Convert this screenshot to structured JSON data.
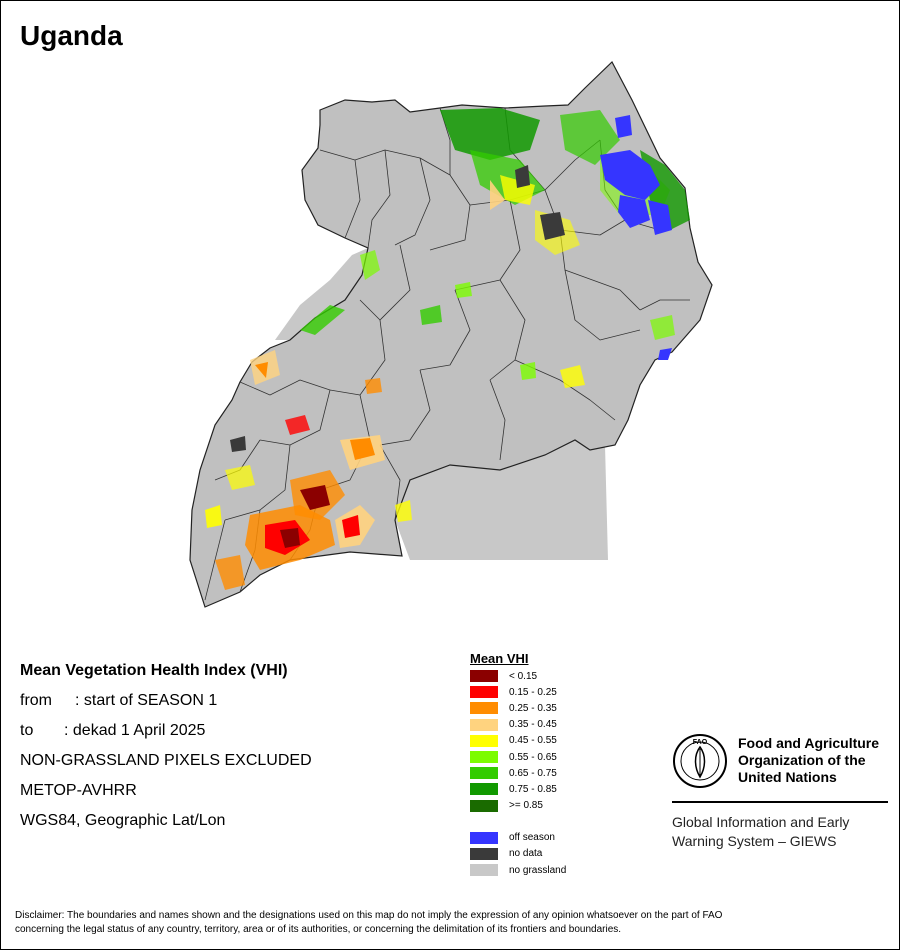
{
  "title": "Uganda",
  "info": {
    "heading": "Mean Vegetation Health Index (VHI)",
    "from_label": "from",
    "from_value": ": start of SEASON 1",
    "to_label": "to",
    "to_value": ": dekad 1 April 2025",
    "mask": "NON-GRASSLAND PIXELS EXCLUDED",
    "sensor": "METOP-AVHRR",
    "projection": "WGS84, Geographic Lat/Lon"
  },
  "legend": {
    "title": "Mean VHI",
    "classes": [
      {
        "label": "< 0.15",
        "color": "#8b0000"
      },
      {
        "label": "0.15 - 0.25",
        "color": "#ff0000"
      },
      {
        "label": "0.25 - 0.35",
        "color": "#ff8c00"
      },
      {
        "label": "0.35 - 0.45",
        "color": "#ffd37f"
      },
      {
        "label": "0.45 - 0.55",
        "color": "#ffff00"
      },
      {
        "label": "0.55 - 0.65",
        "color": "#7cfc00"
      },
      {
        "label": "0.65 - 0.75",
        "color": "#33cc00"
      },
      {
        "label": "0.75 - 0.85",
        "color": "#119900"
      },
      {
        "label": ">= 0.85",
        "color": "#1a6b00"
      }
    ],
    "other": [
      {
        "label": "off season",
        "color": "#3535ff"
      },
      {
        "label": "no data",
        "color": "#3a3a3a"
      },
      {
        "label": "no grassland",
        "color": "#c8c8c8"
      }
    ]
  },
  "fao": {
    "name_line1": "Food and Agriculture",
    "name_line2": "Organization of the",
    "name_line3": "United Nations",
    "logo_text": "FAO",
    "giews_line1": "Global Information and Early",
    "giews_line2": "Warning System – GIEWS"
  },
  "disclaimer_line1": "Disclaimer: The boundaries and names shown and the designations used on this map do not imply the expression of any opinion whatsoever on the part of FAO",
  "disclaimer_line2": "concerning the legal status of any country, territory, area or of its authorities, or concerning the delimitation of its frontiers and boundaries."
}
